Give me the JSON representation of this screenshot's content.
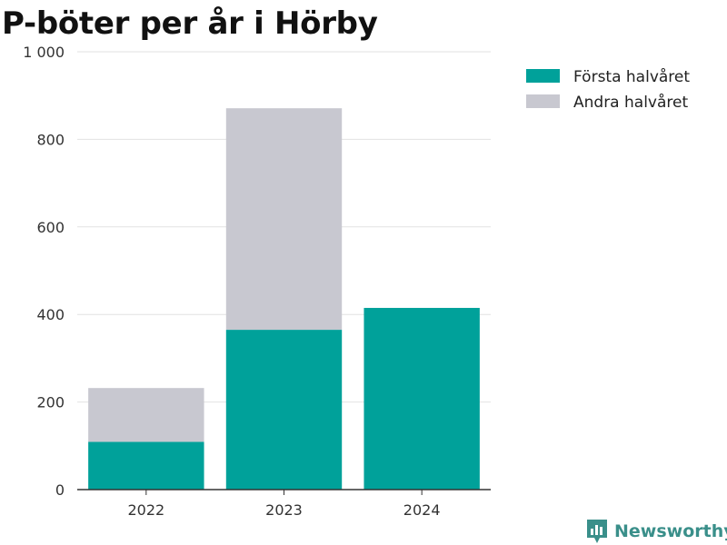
{
  "title": "P-böter per år i Hörby",
  "brand": {
    "name": "Newsworthy",
    "icon": "newsworthy-logo-icon",
    "color": "#3a8f8a"
  },
  "chart_data": {
    "type": "bar",
    "stacked": true,
    "categories": [
      "2022",
      "2023",
      "2024"
    ],
    "series": [
      {
        "name": "Första halvåret",
        "color": "#00a19a",
        "values": [
          109,
          365,
          415
        ]
      },
      {
        "name": "Andra halvåret",
        "color": "#c8c8d0",
        "values": [
          123,
          506,
          null
        ]
      }
    ],
    "ylim": [
      0,
      1000
    ],
    "yticks": [
      0,
      200,
      400,
      600,
      800,
      1000
    ],
    "ytick_labels": [
      "0",
      "200",
      "400",
      "600",
      "800",
      "1 000"
    ],
    "grid": true,
    "legend_position": "top-right"
  }
}
